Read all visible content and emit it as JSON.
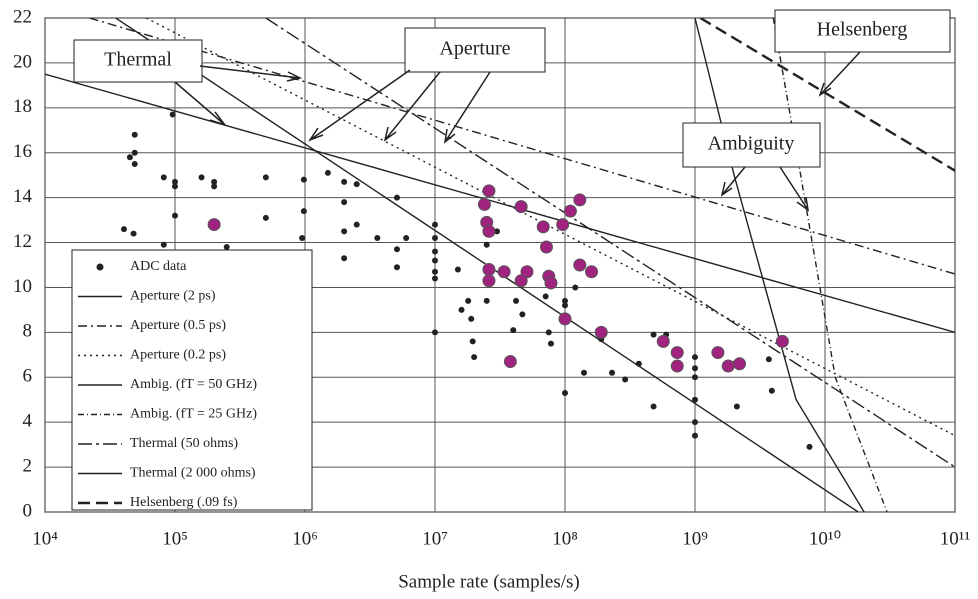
{
  "chart_data": {
    "type": "scatter",
    "xlabel": "Sample rate (samples/s)",
    "xscale": "log",
    "xlim": [
      10000,
      100000000000
    ],
    "ylim": [
      0,
      22
    ],
    "xticks": [
      {
        "value": 10000,
        "label": "10⁴"
      },
      {
        "value": 100000,
        "label": "10⁵"
      },
      {
        "value": 1000000,
        "label": "10⁶"
      },
      {
        "value": 10000000,
        "label": "10⁷"
      },
      {
        "value": 100000000,
        "label": "10⁸"
      },
      {
        "value": 1000000000,
        "label": "10⁹"
      },
      {
        "value": 10000000000,
        "label": "10¹⁰"
      },
      {
        "value": 100000000000,
        "label": "10¹¹"
      }
    ],
    "yticks": [
      0,
      2,
      4,
      6,
      8,
      10,
      12,
      14,
      16,
      18,
      20,
      22
    ],
    "grid": true,
    "legend": "lower left",
    "annotations": [
      "Thermal",
      "Aperture",
      "Helsenberg",
      "Ambiguity"
    ],
    "series": [
      {
        "name": "ADC data",
        "color": "#222222",
        "marker": "dot",
        "x": [
          40500,
          48000,
          49000,
          49000,
          45000,
          49000,
          96000,
          82000,
          100000,
          100000,
          100000,
          82000,
          160000,
          200000,
          200000,
          250000,
          500000,
          500000,
          980000,
          980000,
          950000,
          1500000,
          2000000,
          2000000,
          2000000,
          2000000,
          2500000,
          2500000,
          3600000,
          5100000,
          6000000,
          5100000,
          5100000,
          10000000,
          10000000,
          10000000,
          10000000,
          10000000,
          10000000,
          10000000,
          15000000,
          16000000,
          18000000,
          19000000,
          19500000,
          20000000,
          25000000,
          25000000,
          25000000,
          30000000,
          42000000,
          40000000,
          47000000,
          71000000,
          71000000,
          75000000,
          78000000,
          100000000,
          100000000,
          100000000,
          120000000,
          140000000,
          190000000,
          230000000,
          290000000,
          370000000,
          480000000,
          480000000,
          600000000,
          1000000000,
          1000000000,
          1000000000,
          1000000000,
          1000000000,
          1000000000,
          2000000000,
          2100000000,
          3700000000,
          3900000000,
          7600000000
        ],
        "values": [
          12.6,
          12.4,
          16.8,
          16.0,
          15.8,
          15.5,
          17.7,
          14.9,
          14.7,
          14.5,
          13.2,
          11.9,
          14.9,
          14.7,
          14.5,
          11.8,
          14.9,
          13.1,
          14.8,
          13.4,
          12.2,
          15.1,
          14.7,
          13.8,
          12.5,
          11.3,
          14.6,
          12.8,
          12.2,
          14.0,
          12.2,
          11.7,
          10.9,
          12.8,
          12.2,
          11.6,
          11.2,
          10.7,
          10.4,
          8.0,
          10.8,
          9.0,
          9.4,
          8.6,
          7.6,
          6.9,
          11.9,
          10.7,
          9.4,
          12.5,
          9.4,
          8.1,
          8.8,
          10.5,
          9.6,
          8.0,
          7.5,
          9.4,
          9.2,
          5.3,
          10.0,
          6.2,
          7.7,
          6.2,
          5.9,
          6.6,
          4.7,
          7.9,
          7.9,
          6.9,
          6.4,
          6.0,
          5.0,
          4.0,
          3.4,
          6.6,
          4.7,
          6.8,
          5.4,
          2.9
        ]
      },
      {
        "color": "#a0237f",
        "marker": "circle",
        "x": [
          200000,
          26000000,
          24000000,
          25000000,
          26000000,
          26000000,
          26000000,
          34000000,
          46000000,
          51000000,
          46000000,
          68000000,
          72000000,
          75000000,
          78000000,
          96000000,
          100000000,
          110000000,
          130000000,
          130000000,
          160000000,
          190000000,
          38000000,
          570000000,
          730000000,
          730000000,
          1500000000,
          1800000000,
          2200000000,
          4700000000
        ],
        "values": [
          12.8,
          14.3,
          13.7,
          12.9,
          12.5,
          10.8,
          10.3,
          10.7,
          13.6,
          10.7,
          10.3,
          12.7,
          11.8,
          10.5,
          10.2,
          12.8,
          8.6,
          13.4,
          13.9,
          11.0,
          10.7,
          8.0,
          6.7,
          7.6,
          7.1,
          6.5,
          7.1,
          6.5,
          6.6,
          7.6
        ]
      },
      {
        "name": "Aperture (2 ps)",
        "color": "#222222",
        "line_style": "solid",
        "x": [
          10000,
          100000000000
        ],
        "values": [
          19.5,
          8.0
        ]
      },
      {
        "name": "Aperture (0.5 ps)",
        "color": "#222222",
        "line_style": "dashdot",
        "x": [
          22000,
          100000000000
        ],
        "values": [
          22,
          10.6
        ]
      },
      {
        "name": "Aperture (0.2 ps)",
        "color": "#222222",
        "line_style": "dotted",
        "x": [
          60000,
          100000000000
        ],
        "values": [
          22,
          3.4
        ]
      },
      {
        "name": "Ambig. (fT = 50 GHz)",
        "color": "#222222",
        "line_style": "solid",
        "x": [
          1000000000,
          2000000000,
          6000000000,
          20000000000
        ],
        "values": [
          22,
          15,
          5,
          0
        ]
      },
      {
        "name": "Ambig. (fT = 25 GHz)",
        "color": "#222222",
        "line_style": "dashdot2",
        "x": [
          4000000000,
          6500000000,
          12000000000,
          30000000000
        ],
        "values": [
          22,
          15,
          6,
          0
        ]
      },
      {
        "name": "Thermal (50 ohms)",
        "color": "#222222",
        "line_style": "longdash",
        "x": [
          500000,
          100000000000
        ],
        "values": [
          22,
          2.0
        ]
      },
      {
        "name": "Thermal (2 000 ohms)",
        "color": "#222222",
        "line_style": "solid",
        "x": [
          35000,
          18000000000
        ],
        "values": [
          22,
          0
        ]
      },
      {
        "name": "Helsenberg (.09 fs)",
        "color": "#222222",
        "line_style": "dashed",
        "x": [
          1100000000,
          100000000000
        ],
        "values": [
          22,
          15.2
        ]
      }
    ]
  }
}
